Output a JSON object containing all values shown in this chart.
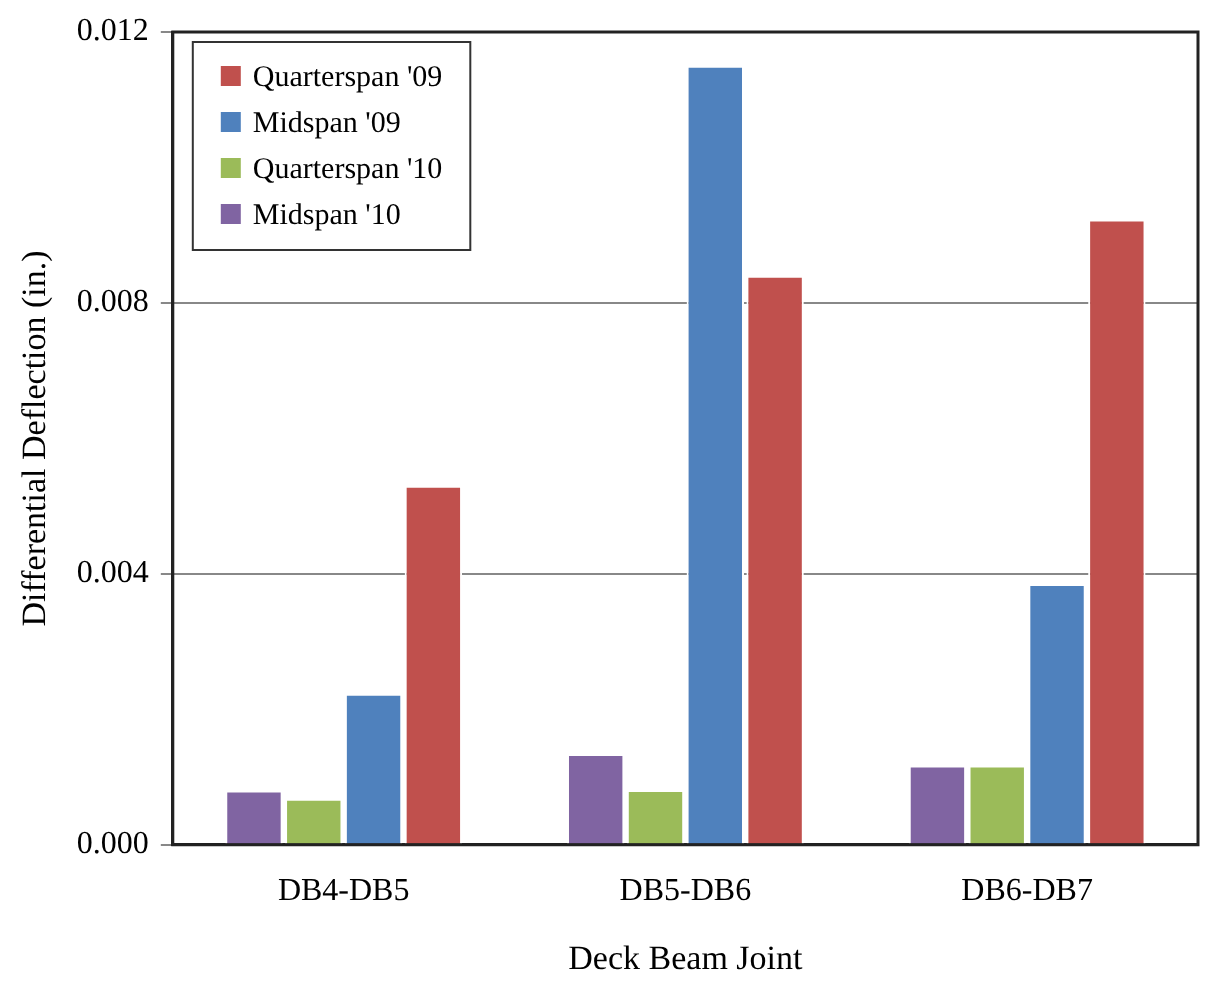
{
  "chart_data": {
    "type": "bar",
    "xlabel": "Deck Beam Joint",
    "ylabel": "Differential Deflection (in.)",
    "categories": [
      "DB4-DB5",
      "DB5-DB6",
      "DB6-DB7"
    ],
    "series": [
      {
        "name": "Midspan '10",
        "color": "#8064a2",
        "values": [
          0.0008,
          0.00134,
          0.00117
        ]
      },
      {
        "name": "Quarterspan '10",
        "color": "#9bbb59",
        "values": [
          0.00068,
          0.00081,
          0.00117
        ]
      },
      {
        "name": "Midspan '09",
        "color": "#4f81bd",
        "values": [
          0.00223,
          0.0115,
          0.00385
        ]
      },
      {
        "name": "Quarterspan '09",
        "color": "#c0504d",
        "values": [
          0.0053,
          0.0084,
          0.00923
        ]
      }
    ],
    "ylim": [
      0,
      0.012
    ],
    "yticks": [
      {
        "value": 0,
        "label": "0.000"
      },
      {
        "value": 0.004,
        "label": "0.004"
      },
      {
        "value": 0.008,
        "label": "0.008"
      },
      {
        "value": 0.012,
        "label": "0.012"
      }
    ],
    "grid": "y",
    "legend": "top left"
  }
}
